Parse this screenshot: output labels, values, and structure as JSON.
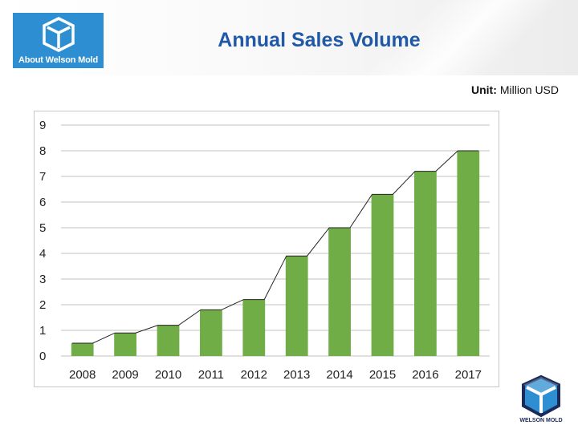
{
  "header": {
    "logo_text": "About Welson Mold",
    "title": "Annual Sales Volume"
  },
  "unit": {
    "label": "Unit:",
    "value": "Million USD"
  },
  "footer": {
    "logo_text": "WELSON MOLD"
  },
  "colors": {
    "title": "#1f59a8",
    "logo_bg": "#2d8fd1",
    "bar": "#70ad47",
    "grid": "#c0c0c0",
    "trend": "#222222"
  },
  "chart_data": {
    "type": "bar",
    "title": "",
    "xlabel": "",
    "ylabel": "",
    "categories": [
      "2008",
      "2009",
      "2010",
      "2011",
      "2012",
      "2013",
      "2014",
      "2015",
      "2016",
      "2017"
    ],
    "values": [
      0.5,
      0.9,
      1.2,
      1.8,
      2.2,
      3.9,
      5.0,
      6.3,
      7.2,
      8.0
    ],
    "ylim": [
      0,
      9
    ],
    "yticks": [
      "0",
      "1",
      "2",
      "3",
      "4",
      "5",
      "6",
      "7",
      "8",
      "9"
    ],
    "grid": true,
    "trend_line": true,
    "legend": "none"
  }
}
